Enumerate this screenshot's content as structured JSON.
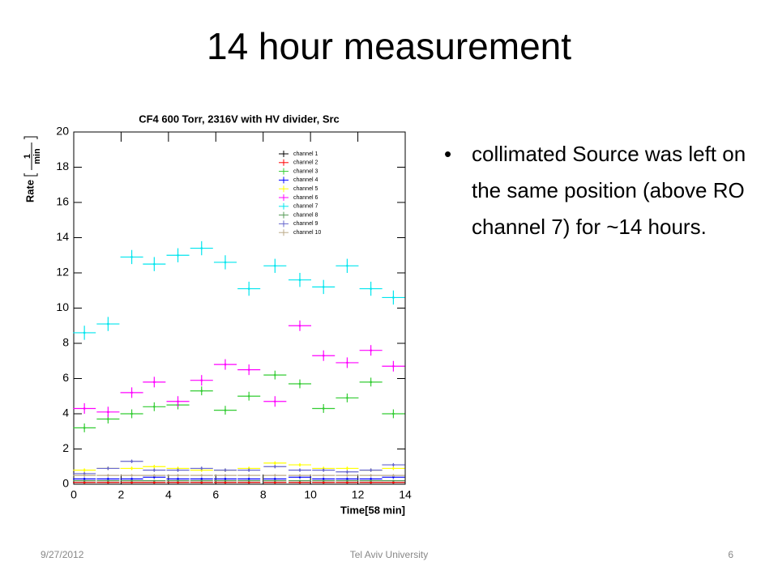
{
  "slide_title": "14 hour measurement",
  "bullets": [
    "collimated Source was left on the same position (above RO channel 7) for ~14 hours."
  ],
  "footer": {
    "date": "9/27/2012",
    "center": "Tel Aviv University",
    "page": "6"
  },
  "chart_data": {
    "type": "errorbar",
    "title": "CF4 600 Torr, 2316V with HV divider, Src",
    "xlabel": "Time[58 min]",
    "ylabel": {
      "text": "Rate",
      "numerator": "1",
      "denominator": "min"
    },
    "xlim": [
      0,
      14
    ],
    "xticks": [
      0,
      2,
      4,
      6,
      8,
      10,
      12,
      14
    ],
    "ylim": [
      0,
      20
    ],
    "yticks": [
      0,
      2,
      4,
      6,
      8,
      10,
      12,
      14,
      16,
      18,
      20
    ],
    "x": [
      0.45,
      1.45,
      2.45,
      3.4,
      4.4,
      5.4,
      6.4,
      7.4,
      8.5,
      9.55,
      10.55,
      11.55,
      12.55,
      13.5
    ],
    "xerr": 0.48,
    "legend": "upper right",
    "series": [
      {
        "name": "channel 1",
        "color": "#000000",
        "values": [
          0.1,
          0.1,
          0.1,
          0.1,
          0.1,
          0.1,
          0.1,
          0.1,
          0.1,
          0.1,
          0.1,
          0.1,
          0.1,
          0.1
        ],
        "errors": [
          0.05,
          0.05,
          0.05,
          0.05,
          0.05,
          0.05,
          0.05,
          0.05,
          0.05,
          0.05,
          0.05,
          0.05,
          0.05,
          0.05
        ]
      },
      {
        "name": "channel 2",
        "color": "#ff0000",
        "values": [
          0.1,
          0.1,
          0.1,
          0.1,
          0.1,
          0.1,
          0.1,
          0.1,
          0.1,
          0.1,
          0.1,
          0.1,
          0.1,
          0.1
        ],
        "errors": [
          0.05,
          0.05,
          0.05,
          0.05,
          0.05,
          0.05,
          0.05,
          0.05,
          0.05,
          0.05,
          0.05,
          0.05,
          0.05,
          0.05
        ]
      },
      {
        "name": "channel 3",
        "color": "#33cc33",
        "values": [
          3.2,
          3.7,
          4.0,
          4.4,
          4.5,
          5.3,
          4.2,
          5.0,
          6.2,
          5.7,
          4.3,
          4.9,
          5.8,
          4.0
        ],
        "errors": [
          0.25,
          0.25,
          0.25,
          0.25,
          0.25,
          0.25,
          0.25,
          0.25,
          0.25,
          0.25,
          0.25,
          0.25,
          0.25,
          0.25
        ]
      },
      {
        "name": "channel 4",
        "color": "#0000ff",
        "values": [
          0.3,
          0.3,
          0.3,
          0.4,
          0.3,
          0.3,
          0.3,
          0.3,
          0.3,
          0.4,
          0.3,
          0.3,
          0.3,
          0.4
        ],
        "errors": [
          0.08,
          0.08,
          0.08,
          0.08,
          0.08,
          0.08,
          0.08,
          0.08,
          0.08,
          0.08,
          0.08,
          0.08,
          0.08,
          0.08
        ]
      },
      {
        "name": "channel 5",
        "color": "#ffff00",
        "values": [
          0.8,
          0.9,
          0.9,
          1.0,
          0.9,
          0.8,
          0.8,
          0.9,
          1.2,
          1.1,
          0.9,
          0.9,
          0.8,
          0.9
        ],
        "errors": [
          0.1,
          0.1,
          0.1,
          0.1,
          0.1,
          0.1,
          0.1,
          0.1,
          0.1,
          0.1,
          0.1,
          0.1,
          0.1,
          0.1
        ]
      },
      {
        "name": "channel 6",
        "color": "#ff00ff",
        "values": [
          4.3,
          4.1,
          5.2,
          5.8,
          4.7,
          5.9,
          6.8,
          6.5,
          4.7,
          9.0,
          7.3,
          6.9,
          7.6,
          6.7
        ],
        "errors": [
          0.3,
          0.3,
          0.3,
          0.3,
          0.3,
          0.3,
          0.3,
          0.3,
          0.3,
          0.3,
          0.3,
          0.3,
          0.3,
          0.3
        ]
      },
      {
        "name": "channel 7",
        "color": "#00e5ee",
        "values": [
          8.6,
          9.1,
          12.9,
          12.5,
          13.0,
          13.4,
          12.6,
          11.1,
          12.4,
          11.6,
          11.2,
          12.4,
          11.1,
          10.6
        ],
        "errors": [
          0.4,
          0.4,
          0.4,
          0.4,
          0.4,
          0.4,
          0.4,
          0.4,
          0.4,
          0.4,
          0.4,
          0.4,
          0.4,
          0.4
        ]
      },
      {
        "name": "channel 8",
        "color": "#559955",
        "values": [
          0.2,
          0.2,
          0.2,
          0.2,
          0.2,
          0.2,
          0.2,
          0.2,
          0.2,
          0.2,
          0.2,
          0.2,
          0.2,
          0.2
        ],
        "errors": [
          0.05,
          0.05,
          0.05,
          0.05,
          0.05,
          0.05,
          0.05,
          0.05,
          0.05,
          0.05,
          0.05,
          0.05,
          0.05,
          0.05
        ]
      },
      {
        "name": "channel 9",
        "color": "#6666cc",
        "values": [
          0.6,
          0.9,
          1.3,
          0.8,
          0.8,
          0.9,
          0.8,
          0.8,
          1.0,
          0.8,
          0.8,
          0.7,
          0.8,
          1.1
        ],
        "errors": [
          0.1,
          0.1,
          0.1,
          0.1,
          0.1,
          0.1,
          0.1,
          0.1,
          0.1,
          0.1,
          0.1,
          0.1,
          0.1,
          0.1
        ]
      },
      {
        "name": "channel 10",
        "color": "#bbaa88",
        "values": [
          0.5,
          0.5,
          0.5,
          0.5,
          0.5,
          0.5,
          0.5,
          0.5,
          0.5,
          0.5,
          0.5,
          0.5,
          0.5,
          0.5
        ],
        "errors": [
          0.08,
          0.08,
          0.08,
          0.08,
          0.08,
          0.08,
          0.08,
          0.08,
          0.08,
          0.08,
          0.08,
          0.08,
          0.08,
          0.08
        ]
      }
    ]
  }
}
